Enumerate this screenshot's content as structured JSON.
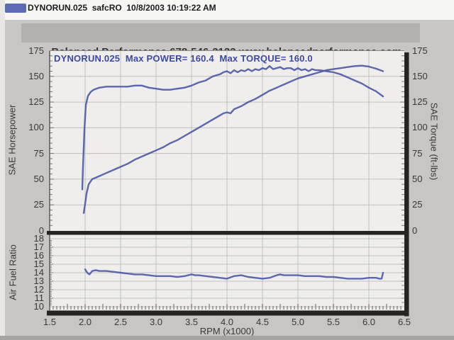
{
  "header": {
    "title": "DYNORUN.025  safcRO  10/8/2003 10:19:22 AM",
    "chip_color": "#5c6cb2"
  },
  "banner": {
    "text": "Balanced Performance 678-546-3133 www.balancedperformance.com"
  },
  "colors": {
    "curve": "#4f5aa7",
    "annotation": "#3c49a4",
    "plot_bg": "#efeeec",
    "grid": "#c2c1bf",
    "frame": "#262421",
    "banner_bg": "#b2b1ae",
    "page_bg": "#c7c6c4"
  },
  "chart_data": [
    {
      "type": "line",
      "title": "DYNORUN.025  Max POWER= 160.4  Max TORQUE= 160.0",
      "xlabel": "RPM (x1000)",
      "ylabel_left": "SAE Horsepower",
      "ylabel_right": "SAE Torque (ft-lbs)",
      "xlim": [
        1.5,
        6.5
      ],
      "ylim": [
        0,
        175
      ],
      "xticks": [
        1.5,
        2.0,
        2.5,
        3.0,
        3.5,
        4.0,
        4.5,
        5.0,
        5.5,
        6.0,
        6.5
      ],
      "yticks": [
        0,
        25,
        50,
        75,
        100,
        125,
        150,
        175
      ],
      "grid": true,
      "legend": "none",
      "max_power": 160.4,
      "max_torque": 160.0,
      "series": [
        {
          "name": "SAE Horsepower",
          "axis": "left",
          "points": [
            [
              1.98,
              17
            ],
            [
              2.0,
              26
            ],
            [
              2.02,
              36
            ],
            [
              2.05,
              45
            ],
            [
              2.1,
              50
            ],
            [
              2.2,
              53
            ],
            [
              2.3,
              56
            ],
            [
              2.4,
              59
            ],
            [
              2.5,
              62
            ],
            [
              2.6,
              65
            ],
            [
              2.7,
              69
            ],
            [
              2.8,
              72
            ],
            [
              2.9,
              75
            ],
            [
              3.0,
              78
            ],
            [
              3.1,
              81
            ],
            [
              3.2,
              85
            ],
            [
              3.3,
              88
            ],
            [
              3.4,
              92
            ],
            [
              3.5,
              96
            ],
            [
              3.6,
              100
            ],
            [
              3.7,
              104
            ],
            [
              3.8,
              108
            ],
            [
              3.9,
              112
            ],
            [
              3.95,
              114
            ],
            [
              4.0,
              115
            ],
            [
              4.05,
              114
            ],
            [
              4.1,
              118
            ],
            [
              4.2,
              121
            ],
            [
              4.3,
              125
            ],
            [
              4.4,
              128
            ],
            [
              4.5,
              132
            ],
            [
              4.6,
              136
            ],
            [
              4.7,
              139
            ],
            [
              4.8,
              142
            ],
            [
              4.9,
              145
            ],
            [
              5.0,
              148
            ],
            [
              5.1,
              150
            ],
            [
              5.2,
              152
            ],
            [
              5.3,
              154
            ],
            [
              5.4,
              156
            ],
            [
              5.5,
              157
            ],
            [
              5.6,
              158
            ],
            [
              5.7,
              159
            ],
            [
              5.8,
              160
            ],
            [
              5.9,
              160.4
            ],
            [
              6.0,
              159.5
            ],
            [
              6.1,
              157.5
            ],
            [
              6.2,
              155
            ]
          ]
        },
        {
          "name": "SAE Torque",
          "axis": "right",
          "points": [
            [
              1.96,
              40
            ],
            [
              1.97,
              62
            ],
            [
              1.99,
              98
            ],
            [
              2.01,
              122
            ],
            [
              2.04,
              131
            ],
            [
              2.08,
              135
            ],
            [
              2.12,
              137
            ],
            [
              2.2,
              139
            ],
            [
              2.3,
              140
            ],
            [
              2.4,
              140
            ],
            [
              2.5,
              140
            ],
            [
              2.6,
              140
            ],
            [
              2.7,
              141
            ],
            [
              2.8,
              141
            ],
            [
              2.9,
              139
            ],
            [
              3.0,
              138
            ],
            [
              3.1,
              137
            ],
            [
              3.2,
              137
            ],
            [
              3.3,
              138
            ],
            [
              3.4,
              139
            ],
            [
              3.5,
              141
            ],
            [
              3.6,
              144
            ],
            [
              3.7,
              146
            ],
            [
              3.8,
              150
            ],
            [
              3.9,
              152
            ],
            [
              3.95,
              154
            ],
            [
              4.0,
              155
            ],
            [
              4.05,
              153
            ],
            [
              4.1,
              156
            ],
            [
              4.15,
              154
            ],
            [
              4.2,
              156
            ],
            [
              4.25,
              155
            ],
            [
              4.3,
              157
            ],
            [
              4.35,
              155
            ],
            [
              4.4,
              157
            ],
            [
              4.45,
              156
            ],
            [
              4.5,
              158
            ],
            [
              4.55,
              157
            ],
            [
              4.6,
              160
            ],
            [
              4.65,
              157
            ],
            [
              4.7,
              158
            ],
            [
              4.75,
              159
            ],
            [
              4.8,
              157
            ],
            [
              4.85,
              158
            ],
            [
              4.9,
              158
            ],
            [
              4.95,
              156
            ],
            [
              5.0,
              158
            ],
            [
              5.05,
              156
            ],
            [
              5.1,
              157
            ],
            [
              5.15,
              155
            ],
            [
              5.2,
              157
            ],
            [
              5.25,
              156
            ],
            [
              5.3,
              156
            ],
            [
              5.4,
              155
            ],
            [
              5.5,
              154
            ],
            [
              5.6,
              152
            ],
            [
              5.7,
              149
            ],
            [
              5.8,
              146
            ],
            [
              5.9,
              143
            ],
            [
              6.0,
              139
            ],
            [
              6.1,
              135.5
            ],
            [
              6.2,
              130.5
            ]
          ]
        }
      ]
    },
    {
      "type": "line",
      "title": "",
      "xlabel": "RPM (x1000)",
      "ylabel": "Air Fuel Ratio",
      "xlim": [
        1.5,
        6.5
      ],
      "ylim": [
        10,
        18
      ],
      "yticks": [
        10,
        11,
        12,
        13,
        14,
        15,
        16,
        17,
        18
      ],
      "grid": true,
      "series": [
        {
          "name": "Air Fuel Ratio",
          "points": [
            [
              2.0,
              14.4
            ],
            [
              2.03,
              14.0
            ],
            [
              2.06,
              13.8
            ],
            [
              2.1,
              14.2
            ],
            [
              2.15,
              14.3
            ],
            [
              2.2,
              14.2
            ],
            [
              2.3,
              14.2
            ],
            [
              2.4,
              14.1
            ],
            [
              2.5,
              14.0
            ],
            [
              2.6,
              13.9
            ],
            [
              2.7,
              13.8
            ],
            [
              2.8,
              13.8
            ],
            [
              2.9,
              13.7
            ],
            [
              3.0,
              13.6
            ],
            [
              3.1,
              13.6
            ],
            [
              3.2,
              13.6
            ],
            [
              3.3,
              13.5
            ],
            [
              3.4,
              13.6
            ],
            [
              3.5,
              13.8
            ],
            [
              3.55,
              13.7
            ],
            [
              3.6,
              13.7
            ],
            [
              3.7,
              13.6
            ],
            [
              3.8,
              13.5
            ],
            [
              3.9,
              13.4
            ],
            [
              4.0,
              13.3
            ],
            [
              4.1,
              13.6
            ],
            [
              4.2,
              13.7
            ],
            [
              4.3,
              13.5
            ],
            [
              4.4,
              13.4
            ],
            [
              4.5,
              13.3
            ],
            [
              4.6,
              13.4
            ],
            [
              4.7,
              13.7
            ],
            [
              4.75,
              13.8
            ],
            [
              4.8,
              13.7
            ],
            [
              4.9,
              13.7
            ],
            [
              5.0,
              13.7
            ],
            [
              5.1,
              13.6
            ],
            [
              5.2,
              13.6
            ],
            [
              5.3,
              13.6
            ],
            [
              5.4,
              13.5
            ],
            [
              5.5,
              13.5
            ],
            [
              5.6,
              13.4
            ],
            [
              5.7,
              13.3
            ],
            [
              5.8,
              13.3
            ],
            [
              5.9,
              13.3
            ],
            [
              6.0,
              13.4
            ],
            [
              6.1,
              13.4
            ],
            [
              6.15,
              13.3
            ],
            [
              6.18,
              13.3
            ],
            [
              6.2,
              14.0
            ]
          ]
        }
      ]
    }
  ]
}
